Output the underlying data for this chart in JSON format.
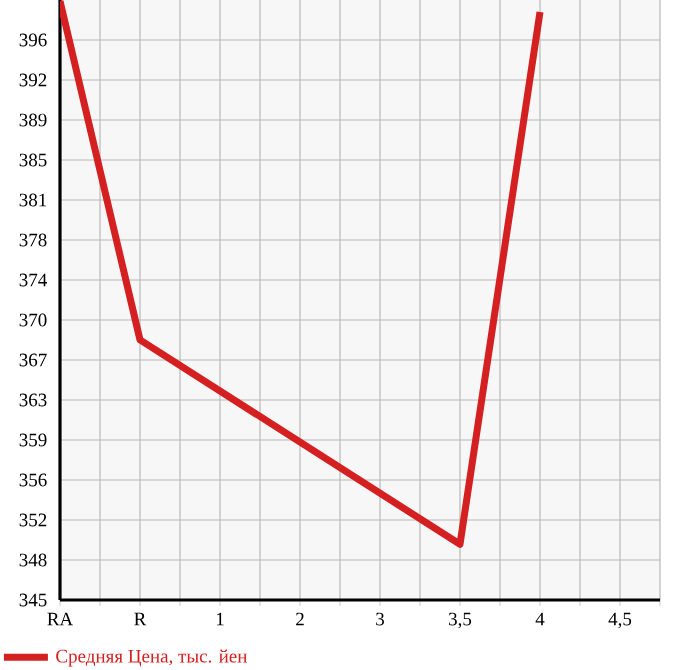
{
  "chart_data": {
    "type": "line",
    "categories": [
      "RA",
      "R",
      "1",
      "2",
      "3",
      "3,5",
      "4",
      "4,5"
    ],
    "series": [
      {
        "name": "Средняя Цена, тыс. йен",
        "color": "#d42020",
        "values": [
          399.4,
          368.4,
          null,
          null,
          null,
          349.7,
          398.4,
          null
        ]
      }
    ],
    "ylim": [
      344.6,
      399.5
    ],
    "yticks": [
      {
        "value": 344.6,
        "label": "345"
      },
      {
        "value": 348.26,
        "label": "348"
      },
      {
        "value": 351.92,
        "label": "352"
      },
      {
        "value": 355.58,
        "label": "356"
      },
      {
        "value": 359.24,
        "label": "359"
      },
      {
        "value": 362.9,
        "label": "363"
      },
      {
        "value": 366.56,
        "label": "367"
      },
      {
        "value": 370.22,
        "label": "370"
      },
      {
        "value": 373.88,
        "label": "374"
      },
      {
        "value": 377.54,
        "label": "378"
      },
      {
        "value": 381.2,
        "label": "381"
      },
      {
        "value": 384.86,
        "label": "385"
      },
      {
        "value": 388.52,
        "label": "389"
      },
      {
        "value": 392.18,
        "label": "392"
      },
      {
        "value": 395.84,
        "label": "396"
      }
    ],
    "grid": true,
    "legend": "bottom left",
    "marker": "none",
    "line_style": "solid"
  }
}
